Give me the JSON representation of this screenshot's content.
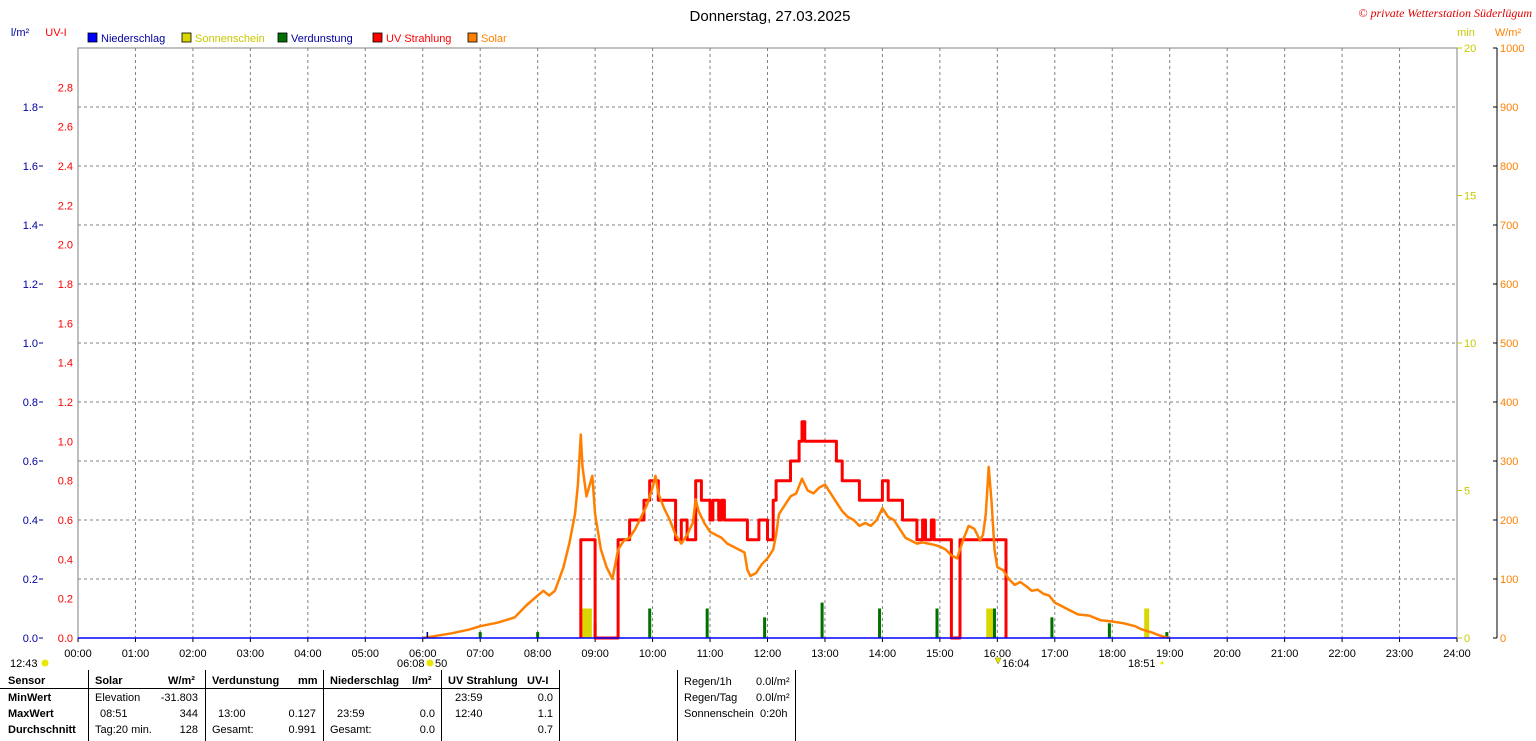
{
  "chart_data": {
    "type": "line",
    "title": "Donnerstag, 27.03.2025",
    "watermark": "© private Wetterstation Süderlügum",
    "legend": [
      {
        "label": "Niederschlag",
        "color": "#0000ff"
      },
      {
        "label": "Sonnenschein",
        "color": "#d8d800"
      },
      {
        "label": "Verdunstung",
        "color": "#007000"
      },
      {
        "label": "UV Strahlung",
        "color": "#ff0000"
      },
      {
        "label": "Solar",
        "color": "#ff8000"
      }
    ],
    "axes": {
      "rain": {
        "unit": "l/m²",
        "color": "#0000a0",
        "min": 0,
        "max": 2.0,
        "ticks": [
          "0.0",
          "0.2",
          "0.4",
          "0.6",
          "0.8",
          "1.0",
          "1.2",
          "1.4",
          "1.6",
          "1.8"
        ]
      },
      "uv": {
        "unit": "UV-I",
        "color": "#ff0000",
        "min": 0,
        "max": 3.0,
        "ticks": [
          "0.0",
          "0.2",
          "0.4",
          "0.6",
          "0.8",
          "1.0",
          "1.2",
          "1.4",
          "1.6",
          "1.8",
          "2.0",
          "2.2",
          "2.4",
          "2.6",
          "2.8"
        ]
      },
      "sun": {
        "unit": "min",
        "color": "#c8c800",
        "min": 0,
        "max": 20,
        "ticks": [
          "0",
          "5",
          "10",
          "15",
          "20"
        ]
      },
      "solar": {
        "unit": "W/m²",
        "color": "#ff8000",
        "min": 0,
        "max": 1000,
        "ticks": [
          "0",
          "100",
          "200",
          "300",
          "400",
          "500",
          "600",
          "700",
          "800",
          "900",
          "1000"
        ]
      },
      "x_ticks": [
        "00:00",
        "01:00",
        "02:00",
        "03:00",
        "04:00",
        "05:00",
        "06:00",
        "07:00",
        "08:00",
        "09:00",
        "10:00",
        "11:00",
        "12:00",
        "13:00",
        "14:00",
        "15:00",
        "16:00",
        "17:00",
        "18:00",
        "19:00",
        "20:00",
        "21:00",
        "22:00",
        "23:00",
        "24:00"
      ]
    },
    "grid": true,
    "markers": {
      "solar_noon": "12:43",
      "sunrise": "06:08",
      "sunrise_suffix": "50",
      "sunset": "18:51",
      "event": "16:04"
    },
    "series": [
      {
        "name": "Solar",
        "axis": "solar",
        "color": "#ff8000",
        "points": [
          [
            6.0,
            0
          ],
          [
            6.2,
            3
          ],
          [
            6.5,
            8
          ],
          [
            6.8,
            14
          ],
          [
            7.0,
            20
          ],
          [
            7.3,
            26
          ],
          [
            7.6,
            35
          ],
          [
            7.8,
            55
          ],
          [
            8.0,
            72
          ],
          [
            8.1,
            80
          ],
          [
            8.2,
            72
          ],
          [
            8.3,
            80
          ],
          [
            8.45,
            120
          ],
          [
            8.55,
            160
          ],
          [
            8.65,
            210
          ],
          [
            8.7,
            260
          ],
          [
            8.75,
            345
          ],
          [
            8.78,
            290
          ],
          [
            8.85,
            240
          ],
          [
            8.95,
            275
          ],
          [
            9.0,
            210
          ],
          [
            9.1,
            150
          ],
          [
            9.2,
            120
          ],
          [
            9.3,
            100
          ],
          [
            9.4,
            150
          ],
          [
            9.5,
            165
          ],
          [
            9.6,
            170
          ],
          [
            9.7,
            185
          ],
          [
            9.8,
            205
          ],
          [
            9.9,
            225
          ],
          [
            10.0,
            255
          ],
          [
            10.05,
            275
          ],
          [
            10.1,
            245
          ],
          [
            10.2,
            220
          ],
          [
            10.3,
            200
          ],
          [
            10.4,
            175
          ],
          [
            10.5,
            160
          ],
          [
            10.6,
            175
          ],
          [
            10.7,
            195
          ],
          [
            10.75,
            235
          ],
          [
            10.8,
            215
          ],
          [
            10.9,
            195
          ],
          [
            11.0,
            180
          ],
          [
            11.1,
            175
          ],
          [
            11.2,
            170
          ],
          [
            11.3,
            160
          ],
          [
            11.4,
            155
          ],
          [
            11.5,
            150
          ],
          [
            11.6,
            145
          ],
          [
            11.65,
            115
          ],
          [
            11.7,
            105
          ],
          [
            11.8,
            110
          ],
          [
            11.9,
            125
          ],
          [
            12.0,
            135
          ],
          [
            12.1,
            150
          ],
          [
            12.15,
            175
          ],
          [
            12.2,
            210
          ],
          [
            12.3,
            225
          ],
          [
            12.4,
            240
          ],
          [
            12.5,
            245
          ],
          [
            12.6,
            270
          ],
          [
            12.7,
            250
          ],
          [
            12.8,
            245
          ],
          [
            12.9,
            255
          ],
          [
            13.0,
            260
          ],
          [
            13.1,
            245
          ],
          [
            13.2,
            230
          ],
          [
            13.3,
            215
          ],
          [
            13.4,
            205
          ],
          [
            13.5,
            200
          ],
          [
            13.6,
            190
          ],
          [
            13.7,
            195
          ],
          [
            13.8,
            190
          ],
          [
            13.9,
            200
          ],
          [
            14.0,
            220
          ],
          [
            14.1,
            205
          ],
          [
            14.2,
            200
          ],
          [
            14.3,
            185
          ],
          [
            14.4,
            170
          ],
          [
            14.5,
            165
          ],
          [
            14.6,
            160
          ],
          [
            14.7,
            162
          ],
          [
            14.8,
            160
          ],
          [
            14.9,
            158
          ],
          [
            15.0,
            155
          ],
          [
            15.1,
            150
          ],
          [
            15.2,
            140
          ],
          [
            15.3,
            135
          ],
          [
            15.4,
            165
          ],
          [
            15.5,
            190
          ],
          [
            15.6,
            185
          ],
          [
            15.7,
            165
          ],
          [
            15.75,
            175
          ],
          [
            15.8,
            210
          ],
          [
            15.85,
            290
          ],
          [
            15.9,
            230
          ],
          [
            15.95,
            150
          ],
          [
            16.0,
            120
          ],
          [
            16.1,
            115
          ],
          [
            16.2,
            100
          ],
          [
            16.3,
            90
          ],
          [
            16.4,
            95
          ],
          [
            16.5,
            88
          ],
          [
            16.6,
            80
          ],
          [
            16.7,
            82
          ],
          [
            16.8,
            75
          ],
          [
            16.9,
            72
          ],
          [
            17.0,
            60
          ],
          [
            17.1,
            55
          ],
          [
            17.2,
            50
          ],
          [
            17.4,
            40
          ],
          [
            17.6,
            38
          ],
          [
            17.8,
            30
          ],
          [
            18.0,
            28
          ],
          [
            18.2,
            25
          ],
          [
            18.4,
            20
          ],
          [
            18.5,
            15
          ],
          [
            18.6,
            12
          ],
          [
            18.7,
            9
          ],
          [
            18.8,
            5
          ],
          [
            18.9,
            2
          ],
          [
            19.0,
            0
          ]
        ]
      },
      {
        "name": "UV Strahlung",
        "axis": "uv",
        "color": "#ff0000",
        "points": [
          [
            8.75,
            0
          ],
          [
            8.75,
            0.5
          ],
          [
            9.0,
            0.5
          ],
          [
            9.0,
            0.0
          ],
          [
            9.4,
            0.0
          ],
          [
            9.4,
            0.5
          ],
          [
            9.6,
            0.5
          ],
          [
            9.6,
            0.6
          ],
          [
            9.85,
            0.6
          ],
          [
            9.85,
            0.7
          ],
          [
            9.95,
            0.7
          ],
          [
            9.95,
            0.8
          ],
          [
            10.1,
            0.8
          ],
          [
            10.1,
            0.7
          ],
          [
            10.4,
            0.7
          ],
          [
            10.4,
            0.5
          ],
          [
            10.5,
            0.5
          ],
          [
            10.5,
            0.6
          ],
          [
            10.6,
            0.6
          ],
          [
            10.6,
            0.5
          ],
          [
            10.75,
            0.5
          ],
          [
            10.75,
            0.8
          ],
          [
            10.85,
            0.8
          ],
          [
            10.85,
            0.7
          ],
          [
            11.0,
            0.7
          ],
          [
            11.0,
            0.6
          ],
          [
            11.05,
            0.6
          ],
          [
            11.05,
            0.7
          ],
          [
            11.15,
            0.7
          ],
          [
            11.15,
            0.6
          ],
          [
            11.2,
            0.6
          ],
          [
            11.2,
            0.7
          ],
          [
            11.25,
            0.7
          ],
          [
            11.25,
            0.6
          ],
          [
            11.65,
            0.6
          ],
          [
            11.65,
            0.5
          ],
          [
            11.85,
            0.5
          ],
          [
            11.85,
            0.6
          ],
          [
            12.0,
            0.6
          ],
          [
            12.0,
            0.5
          ],
          [
            12.1,
            0.5
          ],
          [
            12.1,
            0.7
          ],
          [
            12.15,
            0.7
          ],
          [
            12.15,
            0.8
          ],
          [
            12.4,
            0.8
          ],
          [
            12.4,
            0.9
          ],
          [
            12.55,
            0.9
          ],
          [
            12.55,
            1.0
          ],
          [
            12.6,
            1.0
          ],
          [
            12.6,
            1.1
          ],
          [
            12.65,
            1.1
          ],
          [
            12.65,
            1.0
          ],
          [
            13.2,
            1.0
          ],
          [
            13.2,
            0.9
          ],
          [
            13.3,
            0.9
          ],
          [
            13.3,
            0.8
          ],
          [
            13.6,
            0.8
          ],
          [
            13.6,
            0.7
          ],
          [
            14.0,
            0.7
          ],
          [
            14.0,
            0.8
          ],
          [
            14.1,
            0.8
          ],
          [
            14.1,
            0.7
          ],
          [
            14.35,
            0.7
          ],
          [
            14.35,
            0.6
          ],
          [
            14.6,
            0.6
          ],
          [
            14.6,
            0.5
          ],
          [
            14.7,
            0.5
          ],
          [
            14.7,
            0.6
          ],
          [
            14.75,
            0.6
          ],
          [
            14.75,
            0.5
          ],
          [
            14.85,
            0.5
          ],
          [
            14.85,
            0.6
          ],
          [
            14.9,
            0.6
          ],
          [
            14.9,
            0.5
          ],
          [
            15.2,
            0.5
          ],
          [
            15.2,
            0.0
          ],
          [
            15.35,
            0.0
          ],
          [
            15.35,
            0.5
          ],
          [
            16.15,
            0.5
          ],
          [
            16.15,
            0.0
          ]
        ]
      },
      {
        "name": "Sonnenschein",
        "axis": "sun",
        "color": "#d8d800",
        "bars": [
          [
            8.8,
            1.0
          ],
          [
            8.85,
            1.0
          ],
          [
            8.9,
            1.0
          ],
          [
            15.85,
            1.0
          ],
          [
            15.9,
            1.0
          ],
          [
            18.6,
            1.0
          ]
        ]
      },
      {
        "name": "Verdunstung",
        "axis": "rain",
        "color": "#007000",
        "bars": [
          [
            7.0,
            0.02
          ],
          [
            8.0,
            0.02
          ],
          [
            9.0,
            0.05
          ],
          [
            9.95,
            0.1
          ],
          [
            10.95,
            0.1
          ],
          [
            11.95,
            0.07
          ],
          [
            12.95,
            0.12
          ],
          [
            13.95,
            0.1
          ],
          [
            14.95,
            0.1
          ],
          [
            15.95,
            0.1
          ],
          [
            16.95,
            0.07
          ],
          [
            17.95,
            0.05
          ],
          [
            18.95,
            0.02
          ]
        ]
      }
    ]
  },
  "summary": {
    "headers": {
      "sensor": "Sensor",
      "solar": "Solar",
      "solar_unit": "W/m²",
      "verd": "Verdunstung",
      "verd_unit": "mm",
      "nied": "Niederschlag",
      "nied_unit": "l/m²",
      "uv": "UV Strahlung",
      "uv_unit": "UV-I"
    },
    "rows": {
      "min": {
        "label": "MinWert",
        "solar_time": "Elevation",
        "solar_val": "-31.803",
        "nied_time": "",
        "uv_time": "23:59",
        "uv_val": "0.0"
      },
      "max": {
        "label": "MaxWert",
        "solar_time": "08:51",
        "solar_val": "344",
        "verd_time": "13:00",
        "verd_val": "0.127",
        "nied_time": "23:59",
        "nied_val": "0.0",
        "uv_time": "12:40",
        "uv_val": "1.1"
      },
      "avg": {
        "label": "Durchschnitt",
        "solar_time": "Tag:20 min.",
        "solar_val": "128",
        "verd_time": "Gesamt:",
        "verd_val": "0.991",
        "nied_time": "Gesamt:",
        "nied_val": "0.0",
        "uv_val": "0.7"
      }
    },
    "extra": {
      "regen1h_label": "Regen/1h",
      "regen1h_val": "0.0l/m²",
      "regentag_label": "Regen/Tag",
      "regentag_val": "0.0l/m²",
      "sonne_label": "Sonnenschein",
      "sonne_val": "0:20h"
    }
  }
}
